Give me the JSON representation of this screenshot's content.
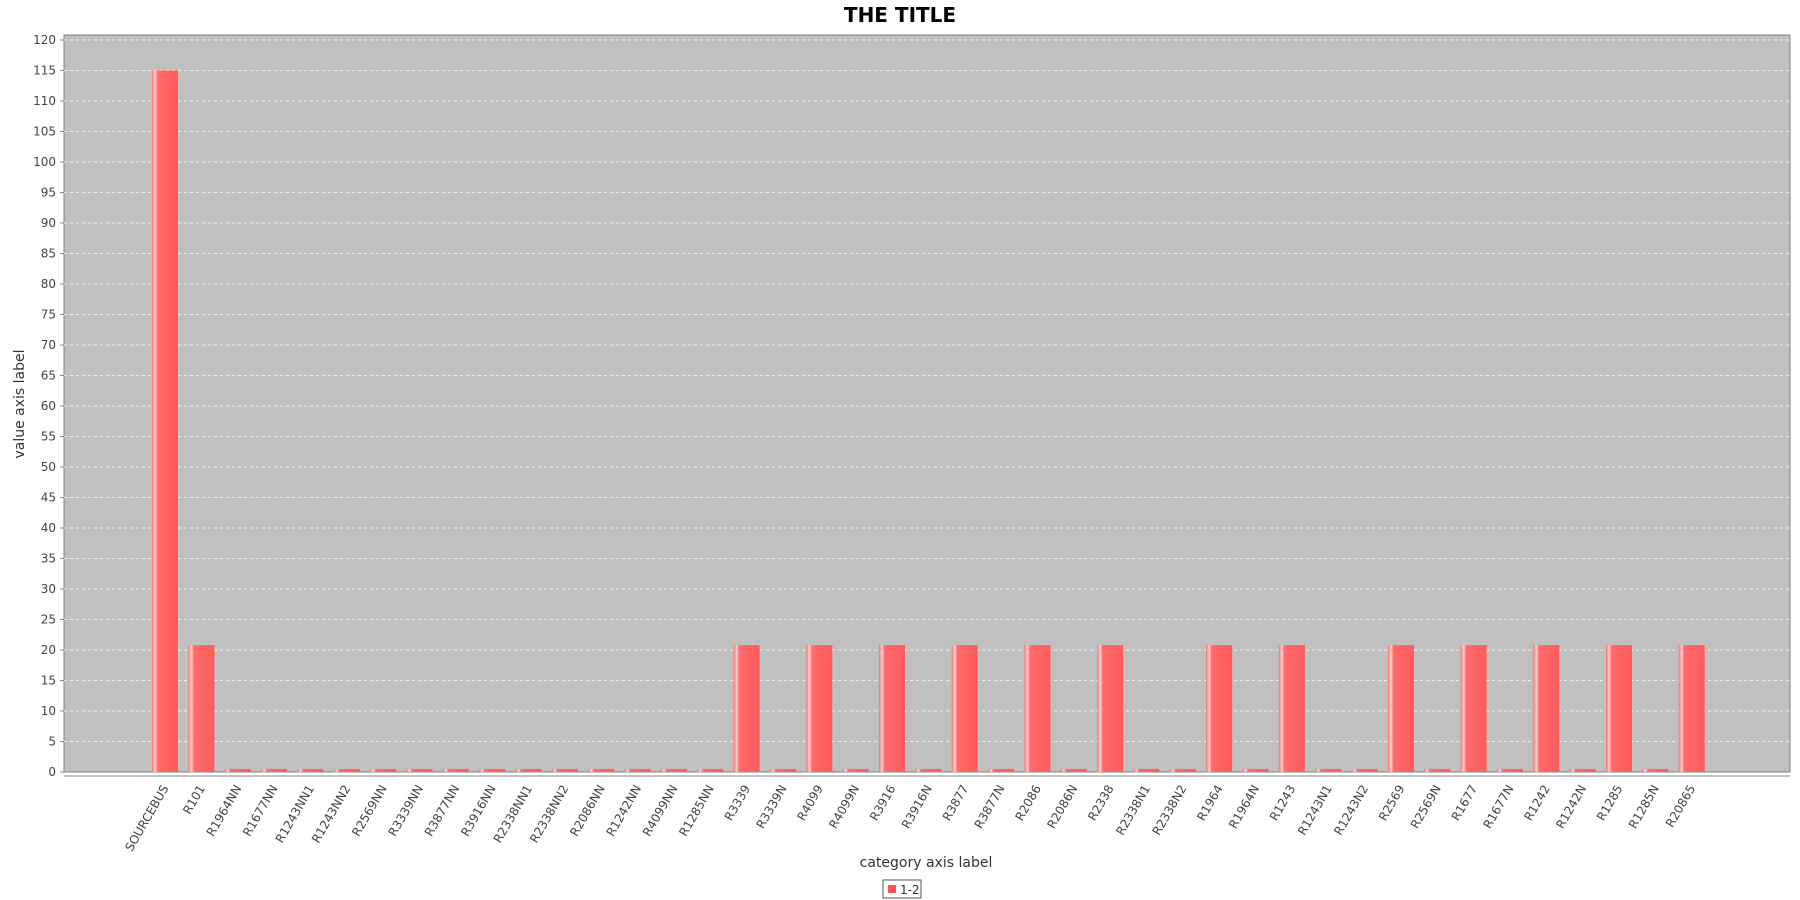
{
  "chart_data": {
    "type": "bar",
    "title": "THE TITLE",
    "xlabel": "category axis label",
    "ylabel": "value axis label",
    "ylim": [
      0,
      120
    ],
    "y_tick_step": 5,
    "grid": true,
    "legend_position": "bottom",
    "colors": {
      "plot_background": "#c0c0c0",
      "bar": "#ff6666",
      "bar_highlight": "#ffc8c8",
      "gridline": "#ffffff",
      "plot_border": "#808080"
    },
    "categories": [
      "SOURCEBUS",
      "R101",
      "R1964NN",
      "R1677NN",
      "R1243NN1",
      "R1243NN2",
      "R2569NN",
      "R3339NN",
      "R3877NN",
      "R3916NN",
      "R2338NN1",
      "R2338NN2",
      "R2086NN",
      "R1242NN",
      "R4099NN",
      "R1285NN",
      "R3339",
      "R3339N",
      "R4099",
      "R4099N",
      "R3916",
      "R3916N",
      "R3877",
      "R3877N",
      "R2086",
      "R2086N",
      "R2338",
      "R2338N1",
      "R2338N2",
      "R1964",
      "R1964N",
      "R1243",
      "R1243N1",
      "R1243N2",
      "R2569",
      "R2569N",
      "R1677",
      "R1677N",
      "R1242",
      "R1242N",
      "R1285",
      "R1285N",
      "R20865"
    ],
    "series": [
      {
        "name": "1-2",
        "values": [
          115,
          20.8,
          0.5,
          0.5,
          0.5,
          0.5,
          0.5,
          0.5,
          0.5,
          0.5,
          0.5,
          0.5,
          0.5,
          0.5,
          0.5,
          0.5,
          20.8,
          0.5,
          20.8,
          0.5,
          20.8,
          0.5,
          20.8,
          0.5,
          20.8,
          0.5,
          20.8,
          0.5,
          0.5,
          20.8,
          0.5,
          20.8,
          0.5,
          0.5,
          20.8,
          0.5,
          20.8,
          0.5,
          20.8,
          0.5,
          20.8,
          0.5,
          20.8
        ]
      }
    ]
  }
}
